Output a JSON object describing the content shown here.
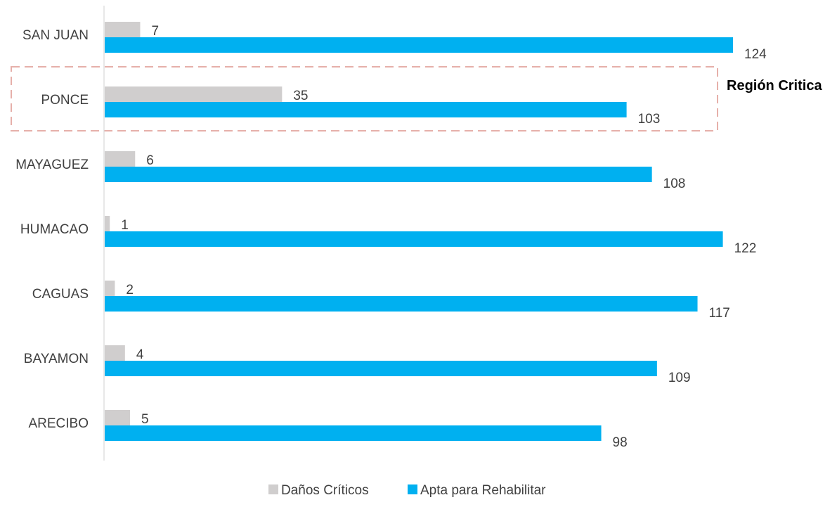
{
  "chart_data": {
    "type": "bar",
    "orientation": "horizontal",
    "categories": [
      "SAN JUAN",
      "PONCE",
      "MAYAGUEZ",
      "HUMACAO",
      "CAGUAS",
      "BAYAMON",
      "ARECIBO"
    ],
    "series": [
      {
        "name": "Daños Críticos",
        "values": [
          7,
          35,
          6,
          1,
          2,
          4,
          5
        ],
        "color": "#d0cece"
      },
      {
        "name": "Apta para Rehabilitar",
        "values": [
          124,
          103,
          108,
          122,
          117,
          109,
          98
        ],
        "color": "#00b0f0"
      }
    ],
    "title": "",
    "xlabel": "",
    "ylabel": "",
    "xlim": [
      0,
      124
    ],
    "grid": false,
    "legend_position": "bottom",
    "data_labels": true,
    "annotations": [
      {
        "text": "Región Critica",
        "target_category": "PONCE",
        "style": "dashed-box",
        "color": "#e6b0aa"
      }
    ]
  }
}
